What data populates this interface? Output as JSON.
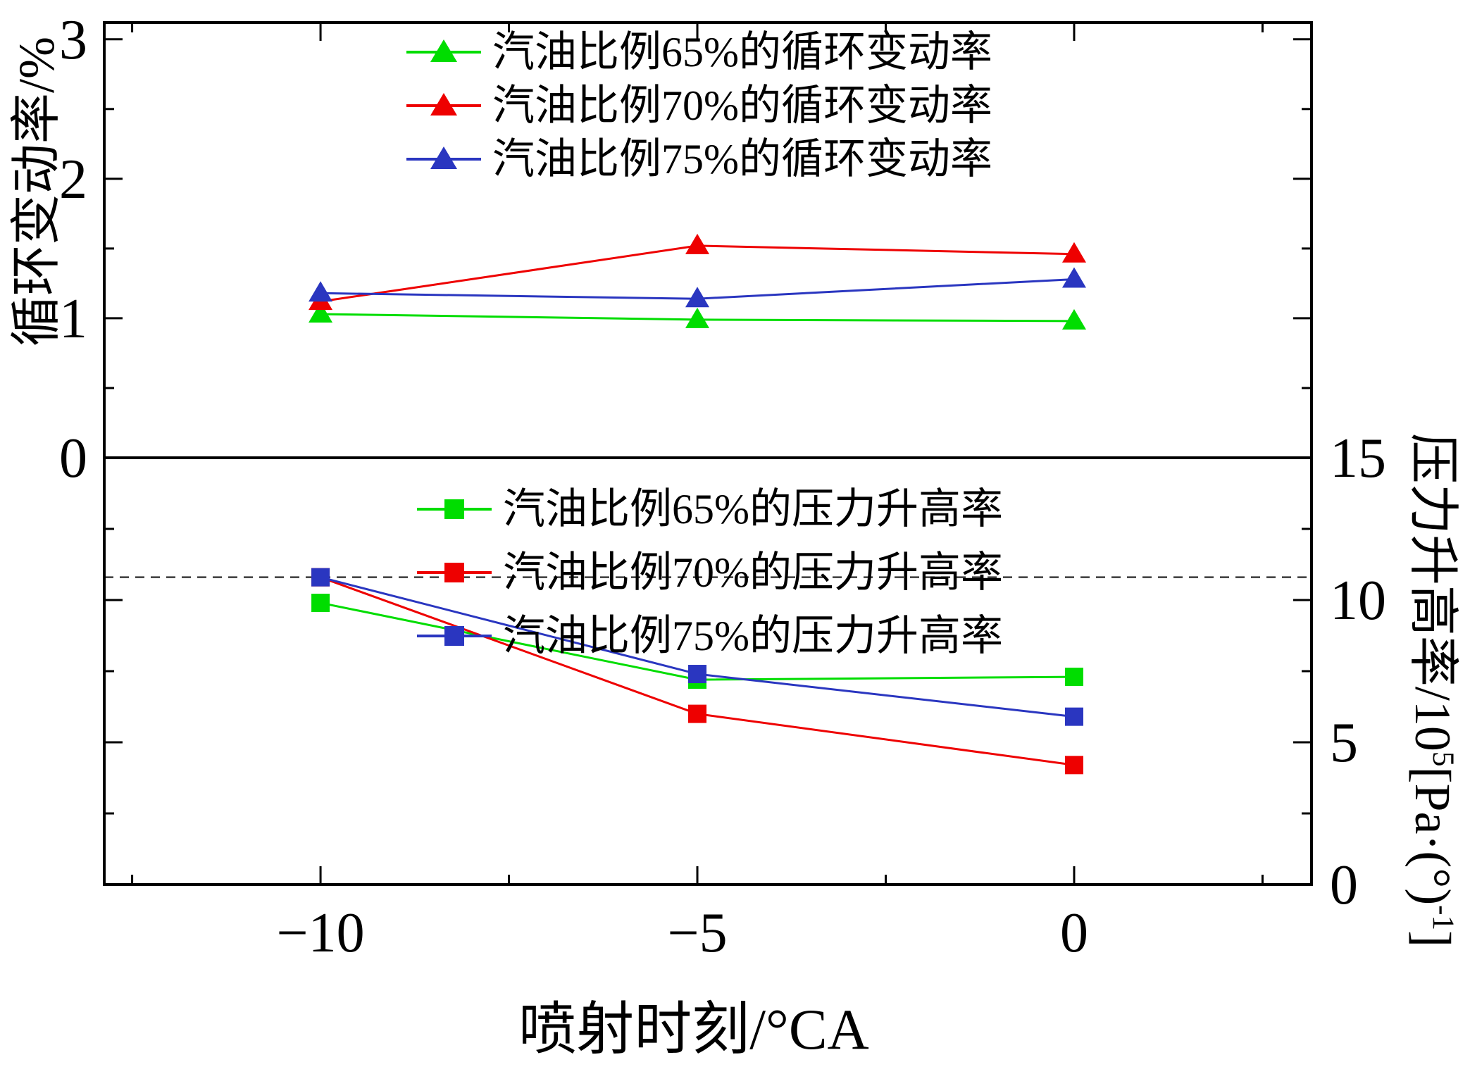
{
  "figure": {
    "background": "#ffffff",
    "frame_color": "#000000"
  },
  "axes": {
    "x_title": "喷射时刻/°CA",
    "left_title": "循环变动率/%",
    "right_title": {
      "full": "压力升高率/10⁵[Pa·(°)⁻¹]",
      "base1": "压力升高率/10",
      "sup1": "5",
      "base2": "[Pa·(°)",
      "sup2": "-1",
      "base3": "]"
    },
    "x_tick_labels": [
      "−10",
      "−5",
      "0"
    ],
    "left_tick_labels": [
      "0",
      "1",
      "2",
      "3"
    ],
    "right_tick_labels": [
      "0",
      "5",
      "10",
      "15"
    ]
  },
  "legend_top": [
    {
      "label": "汽油比例65%的循环变动率",
      "color": "#00dd00",
      "marker": "triangle"
    },
    {
      "label": "汽油比例70%的循环变动率",
      "color": "#ee0000",
      "marker": "triangle"
    },
    {
      "label": "汽油比例75%的循环变动率",
      "color": "#2a36c0",
      "marker": "triangle"
    }
  ],
  "legend_bottom": [
    {
      "label": "汽油比例65%的压力升高率",
      "color": "#00dd00",
      "marker": "square"
    },
    {
      "label": "汽油比例70%的压力升高率",
      "color": "#ee0000",
      "marker": "square"
    },
    {
      "label": "汽油比例75%的压力升高率",
      "color": "#2a36c0",
      "marker": "square"
    }
  ],
  "chart_data": {
    "type": "line",
    "title": "",
    "x": [
      -10,
      -5,
      0
    ],
    "x_axis": {
      "label": "喷射时刻/°CA",
      "ticks": [
        -10,
        -5,
        0
      ],
      "minor_ticks": [
        -12.5,
        -7.5,
        -2.5,
        2.5
      ],
      "range": [
        -12.87,
        3.15
      ]
    },
    "top_panel": {
      "y_axis": {
        "label": "循环变动率/%",
        "ticks": [
          0,
          1,
          2,
          3
        ],
        "minor_ticks": [
          0.5,
          1.5,
          2.5
        ],
        "range": [
          0,
          3.12
        ]
      },
      "series": [
        {
          "name": "汽油比例65%的循环变动率",
          "color": "#00dd00",
          "marker": "triangle",
          "values": [
            1.03,
            0.99,
            0.98
          ]
        },
        {
          "name": "汽油比例70%的循环变动率",
          "color": "#ee0000",
          "marker": "triangle",
          "values": [
            1.12,
            1.52,
            1.46
          ]
        },
        {
          "name": "汽油比例75%的循环变动率",
          "color": "#2a36c0",
          "marker": "triangle",
          "values": [
            1.18,
            1.14,
            1.28
          ]
        }
      ]
    },
    "bottom_panel": {
      "y_axis": {
        "label": "压力升高率/10⁵[Pa·(°)⁻¹]",
        "ticks": [
          0,
          5,
          10,
          15
        ],
        "minor_ticks": [
          2.5,
          7.5,
          12.5
        ],
        "range": [
          0,
          15
        ]
      },
      "reference_line": {
        "value": 10.8,
        "style": "dashed"
      },
      "series": [
        {
          "name": "汽油比例65%的压力升高率",
          "color": "#00dd00",
          "marker": "square",
          "values": [
            9.9,
            7.2,
            7.3
          ]
        },
        {
          "name": "汽油比例70%的压力升高率",
          "color": "#ee0000",
          "marker": "square",
          "values": [
            10.8,
            6.0,
            4.2
          ]
        },
        {
          "name": "汽油比例75%的压力升高率",
          "color": "#2a36c0",
          "marker": "square",
          "values": [
            10.8,
            7.4,
            5.9
          ]
        }
      ]
    }
  }
}
